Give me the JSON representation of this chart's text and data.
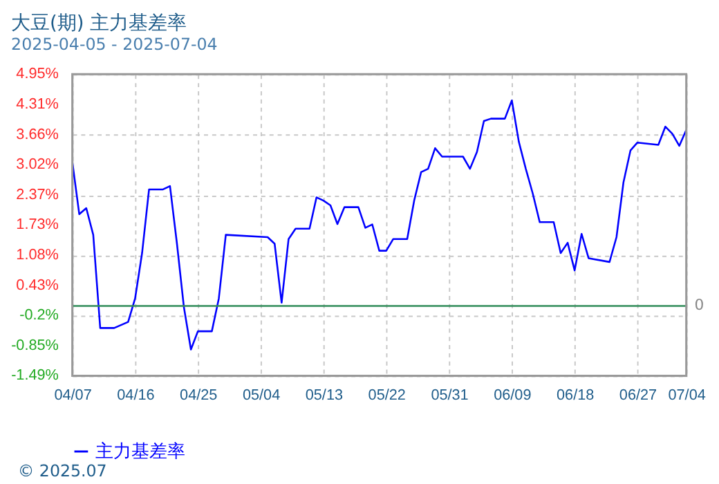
{
  "chart_data": {
    "type": "line",
    "title": "大豆(期) 主力基差率",
    "subtitle": "2025-04-05 - 2025-07-04",
    "x": [
      "2025-04-07",
      "2025-04-08",
      "2025-04-09",
      "2025-04-10",
      "2025-04-11",
      "2025-04-13",
      "2025-04-15",
      "2025-04-16",
      "2025-04-17",
      "2025-04-18",
      "2025-04-20",
      "2025-04-21",
      "2025-04-22",
      "2025-04-23",
      "2025-04-24",
      "2025-04-25",
      "2025-04-27",
      "2025-04-28",
      "2025-04-29",
      "2025-05-05",
      "2025-05-06",
      "2025-05-07",
      "2025-05-08",
      "2025-05-09",
      "2025-05-11",
      "2025-05-12",
      "2025-05-13",
      "2025-05-14",
      "2025-05-15",
      "2025-05-16",
      "2025-05-18",
      "2025-05-19",
      "2025-05-20",
      "2025-05-21",
      "2025-05-22",
      "2025-05-23",
      "2025-05-25",
      "2025-05-26",
      "2025-05-27",
      "2025-05-28",
      "2025-05-29",
      "2025-05-30",
      "2025-06-02",
      "2025-06-03",
      "2025-06-04",
      "2025-06-05",
      "2025-06-06",
      "2025-06-08",
      "2025-06-09",
      "2025-06-10",
      "2025-06-11",
      "2025-06-12",
      "2025-06-13",
      "2025-06-15",
      "2025-06-16",
      "2025-06-17",
      "2025-06-18",
      "2025-06-19",
      "2025-06-20",
      "2025-06-23",
      "2025-06-24",
      "2025-06-25",
      "2025-06-26",
      "2025-06-27",
      "2025-06-30",
      "2025-07-01",
      "2025-07-02",
      "2025-07-03",
      "2025-07-04"
    ],
    "series": [
      {
        "name": "主力基差率",
        "color": "#0000ff",
        "values": [
          3.08,
          1.96,
          2.09,
          1.52,
          -0.47,
          -0.47,
          -0.34,
          0.16,
          1.13,
          2.49,
          2.49,
          2.56,
          1.33,
          -0.03,
          -0.93,
          -0.54,
          -0.54,
          0.16,
          1.52,
          1.47,
          1.33,
          0.07,
          1.43,
          1.65,
          1.65,
          2.32,
          2.25,
          2.15,
          1.75,
          2.11,
          2.11,
          1.67,
          1.74,
          1.18,
          1.18,
          1.43,
          1.43,
          2.25,
          2.86,
          2.93,
          3.37,
          3.19,
          3.19,
          2.93,
          3.29,
          3.95,
          4.0,
          4.0,
          4.39,
          3.51,
          2.93,
          2.4,
          1.79,
          1.79,
          1.13,
          1.35,
          0.76,
          1.54,
          1.02,
          0.94,
          1.47,
          2.64,
          3.32,
          3.49,
          3.44,
          3.83,
          3.68,
          3.42,
          3.76
        ]
      }
    ],
    "xlim": [
      "2025-04-07",
      "2025-07-04"
    ],
    "xticks": [
      {
        "value": "2025-04-07",
        "label": "04/07"
      },
      {
        "value": "2025-04-16",
        "label": "04/16"
      },
      {
        "value": "2025-04-25",
        "label": "04/25"
      },
      {
        "value": "2025-05-04",
        "label": "05/04"
      },
      {
        "value": "2025-05-13",
        "label": "05/13"
      },
      {
        "value": "2025-05-22",
        "label": "05/22"
      },
      {
        "value": "2025-05-31",
        "label": "05/31"
      },
      {
        "value": "2025-06-09",
        "label": "06/09"
      },
      {
        "value": "2025-06-18",
        "label": "06/18"
      },
      {
        "value": "2025-06-27",
        "label": "06/27"
      },
      {
        "value": "2025-07-04",
        "label": "07/04"
      }
    ],
    "ylim": [
      -1.49,
      4.95
    ],
    "yticks": [
      {
        "value": -1.49,
        "label": "-1.49%"
      },
      {
        "value": -0.85,
        "label": "-0.85%"
      },
      {
        "value": -0.2,
        "label": "-0.2%"
      },
      {
        "value": 0.43,
        "label": "0.43%"
      },
      {
        "value": 1.08,
        "label": "1.08%"
      },
      {
        "value": 1.73,
        "label": "1.73%"
      },
      {
        "value": 2.37,
        "label": "2.37%"
      },
      {
        "value": 3.02,
        "label": "3.02%"
      },
      {
        "value": 3.66,
        "label": "3.66%"
      },
      {
        "value": 4.31,
        "label": "4.31%"
      },
      {
        "value": 4.95,
        "label": "4.95%"
      }
    ],
    "ref_lines": [
      {
        "axis": "y",
        "value": 0,
        "label": "0",
        "color": "#2e8b57"
      }
    ],
    "grid": true,
    "legend": "bottom",
    "marker": "none",
    "line_style": "solid",
    "annotations": [
      "© 2025.07"
    ]
  }
}
